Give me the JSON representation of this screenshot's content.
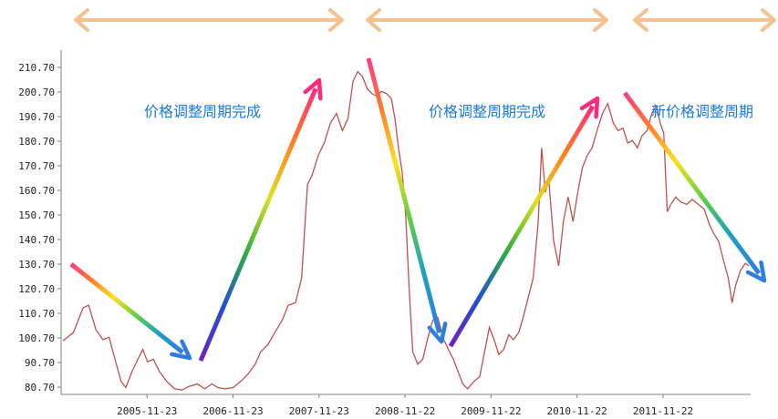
{
  "chart_data": {
    "type": "line",
    "title": "",
    "xlabel": "",
    "ylabel": "",
    "x_ticks": [
      "2005-11-23",
      "2006-11-23",
      "2007-11-23",
      "2008-11-22",
      "2009-11-22",
      "2010-11-22",
      "2011-11-22"
    ],
    "y_ticks": [
      "80.70",
      "90.70",
      "100.70",
      "110.70",
      "120.70",
      "130.70",
      "140.70",
      "150.70",
      "160.70",
      "170.70",
      "180.70",
      "190.70",
      "200.70",
      "210.70"
    ],
    "ylim": [
      78,
      213
    ],
    "xlim": [
      "2004-12-01",
      "2012-11-20"
    ],
    "grid": false,
    "series": [
      {
        "color": "#c0504d",
        "points": [
          [
            "2004-12-01",
            99.5
          ],
          [
            "2005-01-15",
            103
          ],
          [
            "2005-02-25",
            113
          ],
          [
            "2005-03-20",
            114
          ],
          [
            "2005-04-20",
            104
          ],
          [
            "2005-05-20",
            100
          ],
          [
            "2005-06-15",
            101
          ],
          [
            "2005-07-10",
            92
          ],
          [
            "2005-08-05",
            83
          ],
          [
            "2005-08-25",
            80.5
          ],
          [
            "2005-09-20",
            87
          ],
          [
            "2005-10-15",
            92
          ],
          [
            "2005-11-05",
            96
          ],
          [
            "2005-11-25",
            91
          ],
          [
            "2005-12-20",
            92
          ],
          [
            "2006-01-15",
            87
          ],
          [
            "2006-02-15",
            83
          ],
          [
            "2006-03-20",
            80
          ],
          [
            "2006-04-20",
            79.5
          ],
          [
            "2006-05-20",
            81
          ],
          [
            "2006-06-25",
            82
          ],
          [
            "2006-07-25",
            80
          ],
          [
            "2006-08-25",
            82
          ],
          [
            "2006-09-20",
            80.5
          ],
          [
            "2006-10-20",
            80
          ],
          [
            "2006-11-23",
            80.5
          ],
          [
            "2006-12-25",
            83
          ],
          [
            "2007-01-25",
            86
          ],
          [
            "2007-02-25",
            90
          ],
          [
            "2007-03-20",
            95
          ],
          [
            "2007-04-20",
            98
          ],
          [
            "2007-05-20",
            103
          ],
          [
            "2007-06-20",
            108
          ],
          [
            "2007-07-15",
            114
          ],
          [
            "2007-08-15",
            115
          ],
          [
            "2007-09-10",
            125
          ],
          [
            "2007-10-05",
            163
          ],
          [
            "2007-10-25",
            167
          ],
          [
            "2007-11-20",
            175
          ],
          [
            "2007-12-15",
            180
          ],
          [
            "2008-01-10",
            188
          ],
          [
            "2008-02-05",
            192
          ],
          [
            "2008-03-01",
            185
          ],
          [
            "2008-03-25",
            190
          ],
          [
            "2008-04-15",
            205
          ],
          [
            "2008-05-05",
            209
          ],
          [
            "2008-05-25",
            207
          ],
          [
            "2008-06-15",
            202
          ],
          [
            "2008-07-05",
            200
          ],
          [
            "2008-07-25",
            199
          ],
          [
            "2008-08-15",
            201
          ],
          [
            "2008-09-05",
            200
          ],
          [
            "2008-09-25",
            198
          ],
          [
            "2008-10-10",
            190
          ],
          [
            "2008-10-25",
            178
          ],
          [
            "2008-11-10",
            168
          ],
          [
            "2008-11-25",
            150
          ],
          [
            "2008-12-10",
            120
          ],
          [
            "2008-12-25",
            95
          ],
          [
            "2009-01-15",
            90
          ],
          [
            "2009-02-05",
            92
          ],
          [
            "2009-02-25",
            100
          ],
          [
            "2009-03-20",
            108
          ],
          [
            "2009-04-10",
            109
          ],
          [
            "2009-05-05",
            100
          ],
          [
            "2009-05-25",
            96
          ],
          [
            "2009-06-15",
            92
          ],
          [
            "2009-07-05",
            87
          ],
          [
            "2009-07-25",
            82
          ],
          [
            "2009-08-15",
            80
          ],
          [
            "2009-09-10",
            83
          ],
          [
            "2009-10-05",
            85
          ],
          [
            "2009-10-25",
            95
          ],
          [
            "2009-11-15",
            105
          ],
          [
            "2009-12-05",
            100
          ],
          [
            "2009-12-25",
            94
          ],
          [
            "2010-01-15",
            96
          ],
          [
            "2010-02-05",
            102
          ],
          [
            "2010-02-25",
            100
          ],
          [
            "2010-03-20",
            103
          ],
          [
            "2010-04-10",
            110
          ],
          [
            "2010-05-01",
            118
          ],
          [
            "2010-05-20",
            125
          ],
          [
            "2010-06-10",
            148
          ],
          [
            "2010-06-25",
            178
          ],
          [
            "2010-07-10",
            160
          ],
          [
            "2010-07-25",
            165
          ],
          [
            "2010-08-15",
            140
          ],
          [
            "2010-09-05",
            130
          ],
          [
            "2010-09-25",
            148
          ],
          [
            "2010-10-15",
            158
          ],
          [
            "2010-11-05",
            148
          ],
          [
            "2010-11-25",
            160
          ],
          [
            "2010-12-15",
            170
          ],
          [
            "2011-01-05",
            175
          ],
          [
            "2011-01-25",
            178
          ],
          [
            "2011-02-15",
            185
          ],
          [
            "2011-03-10",
            192
          ],
          [
            "2011-04-01",
            196
          ],
          [
            "2011-04-25",
            188
          ],
          [
            "2011-05-15",
            185
          ],
          [
            "2011-06-05",
            186
          ],
          [
            "2011-06-25",
            180
          ],
          [
            "2011-07-15",
            181
          ],
          [
            "2011-08-05",
            178
          ],
          [
            "2011-08-25",
            183
          ],
          [
            "2011-09-15",
            185
          ],
          [
            "2011-10-05",
            192
          ],
          [
            "2011-10-25",
            195
          ],
          [
            "2011-11-10",
            188
          ],
          [
            "2011-11-25",
            184
          ],
          [
            "2011-12-10",
            152
          ],
          [
            "2011-12-25",
            155
          ],
          [
            "2012-01-15",
            158
          ],
          [
            "2012-02-05",
            156
          ],
          [
            "2012-03-01",
            155
          ],
          [
            "2012-03-25",
            157
          ],
          [
            "2012-04-20",
            155
          ],
          [
            "2012-05-15",
            153
          ],
          [
            "2012-06-05",
            147
          ],
          [
            "2012-06-25",
            143
          ],
          [
            "2012-07-15",
            140
          ],
          [
            "2012-08-05",
            132
          ],
          [
            "2012-08-25",
            125
          ],
          [
            "2012-09-10",
            115
          ],
          [
            "2012-09-25",
            122
          ],
          [
            "2012-10-15",
            128
          ],
          [
            "2012-11-05",
            131
          ],
          [
            "2012-11-20",
            130
          ]
        ]
      }
    ],
    "annotations": [
      {
        "text": "价格调整周期完成"
      },
      {
        "text": "价格调整周期完成"
      },
      {
        "text": "新价格调整周期"
      }
    ],
    "colors": {
      "line": "#c0504d",
      "period_arrow": "#f8c08c",
      "annotation_text": "#1a7ae0",
      "axis": "#808080"
    }
  }
}
